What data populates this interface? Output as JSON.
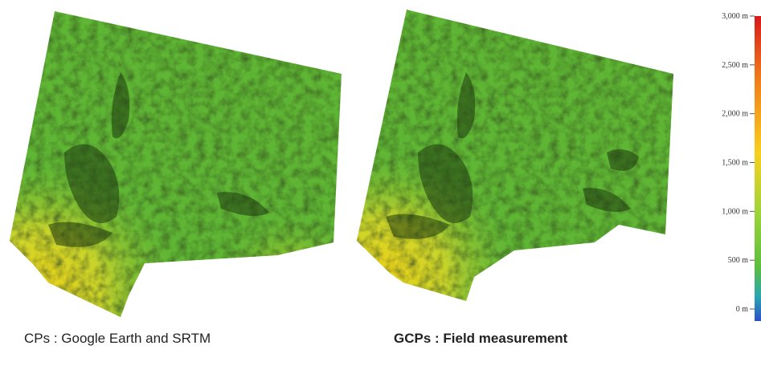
{
  "panels": [
    {
      "caption": "CPs : Google Earth and SRTM"
    },
    {
      "caption": "GCPs : Field measurement"
    }
  ],
  "legend": {
    "ticks": [
      "3,000 m",
      "2,500 m",
      "2,000 m",
      "1,500 m",
      "1,000 m",
      "500 m",
      "0 m"
    ],
    "colors": [
      "#d7191c",
      "#f07a1a",
      "#f8d01e",
      "#9bd43a",
      "#5cbf3a",
      "#2aa6b0",
      "#2c4fc7"
    ]
  }
}
